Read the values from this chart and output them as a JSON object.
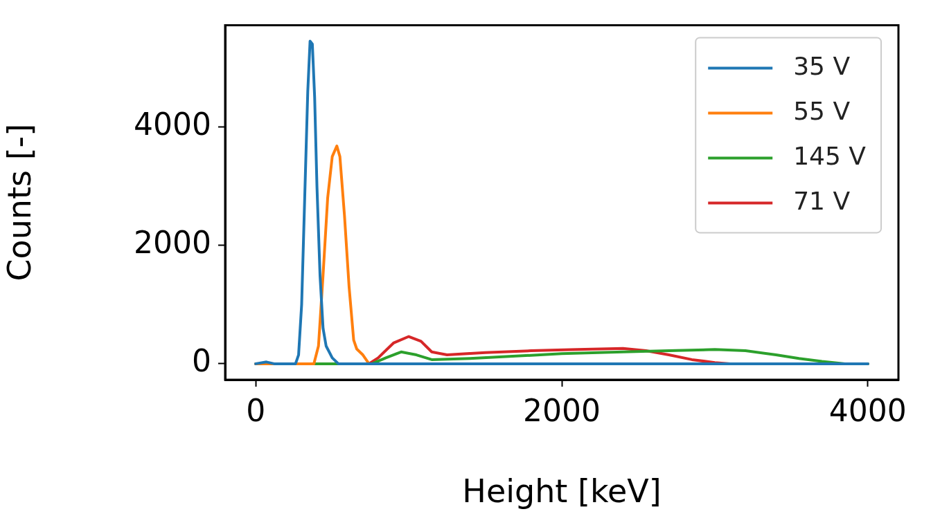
{
  "chart_data": {
    "type": "line",
    "xlabel": "Height [keV]",
    "ylabel": "Counts [-]",
    "xlim": [
      -200,
      4200
    ],
    "xticks": [
      0,
      2000,
      4000
    ],
    "ylim": [
      -270,
      5720
    ],
    "yticks": [
      0,
      2000,
      4000
    ],
    "grid": false,
    "legend": "top right",
    "marker": "none",
    "line_style": "solid",
    "series": [
      {
        "name": "35 V",
        "color": "#1f77b4",
        "x": [
          0,
          70,
          120,
          260,
          280,
          300,
          320,
          340,
          355,
          370,
          385,
          400,
          420,
          440,
          460,
          500,
          540,
          4000
        ],
        "values": [
          0,
          30,
          0,
          0,
          150,
          1000,
          2800,
          4600,
          5450,
          5400,
          4500,
          3000,
          1500,
          600,
          300,
          100,
          0,
          0
        ]
      },
      {
        "name": "55 V",
        "color": "#ff7f0e",
        "x": [
          0,
          380,
          410,
          440,
          470,
          500,
          530,
          550,
          580,
          610,
          640,
          660,
          700,
          740,
          2800
        ],
        "values": [
          0,
          0,
          300,
          1500,
          2800,
          3500,
          3680,
          3500,
          2500,
          1300,
          400,
          250,
          150,
          0,
          0
        ]
      },
      {
        "name": "145 V",
        "color": "#2ca02c",
        "x": [
          0,
          760,
          850,
          950,
          1050,
          1150,
          1400,
          1700,
          2000,
          2400,
          2700,
          3000,
          3200,
          3400,
          3550,
          3700,
          3850,
          4000
        ],
        "values": [
          0,
          0,
          100,
          200,
          150,
          70,
          90,
          130,
          170,
          200,
          220,
          240,
          220,
          150,
          90,
          40,
          0,
          0
        ]
      },
      {
        "name": "71 V",
        "color": "#d62728",
        "x": [
          0,
          740,
          800,
          900,
          1000,
          1080,
          1150,
          1250,
          1500,
          1800,
          2100,
          2400,
          2550,
          2700,
          2850,
          3000,
          3100,
          4000
        ],
        "values": [
          0,
          0,
          100,
          350,
          460,
          380,
          200,
          150,
          190,
          220,
          240,
          260,
          220,
          150,
          70,
          20,
          0,
          0
        ]
      }
    ]
  }
}
